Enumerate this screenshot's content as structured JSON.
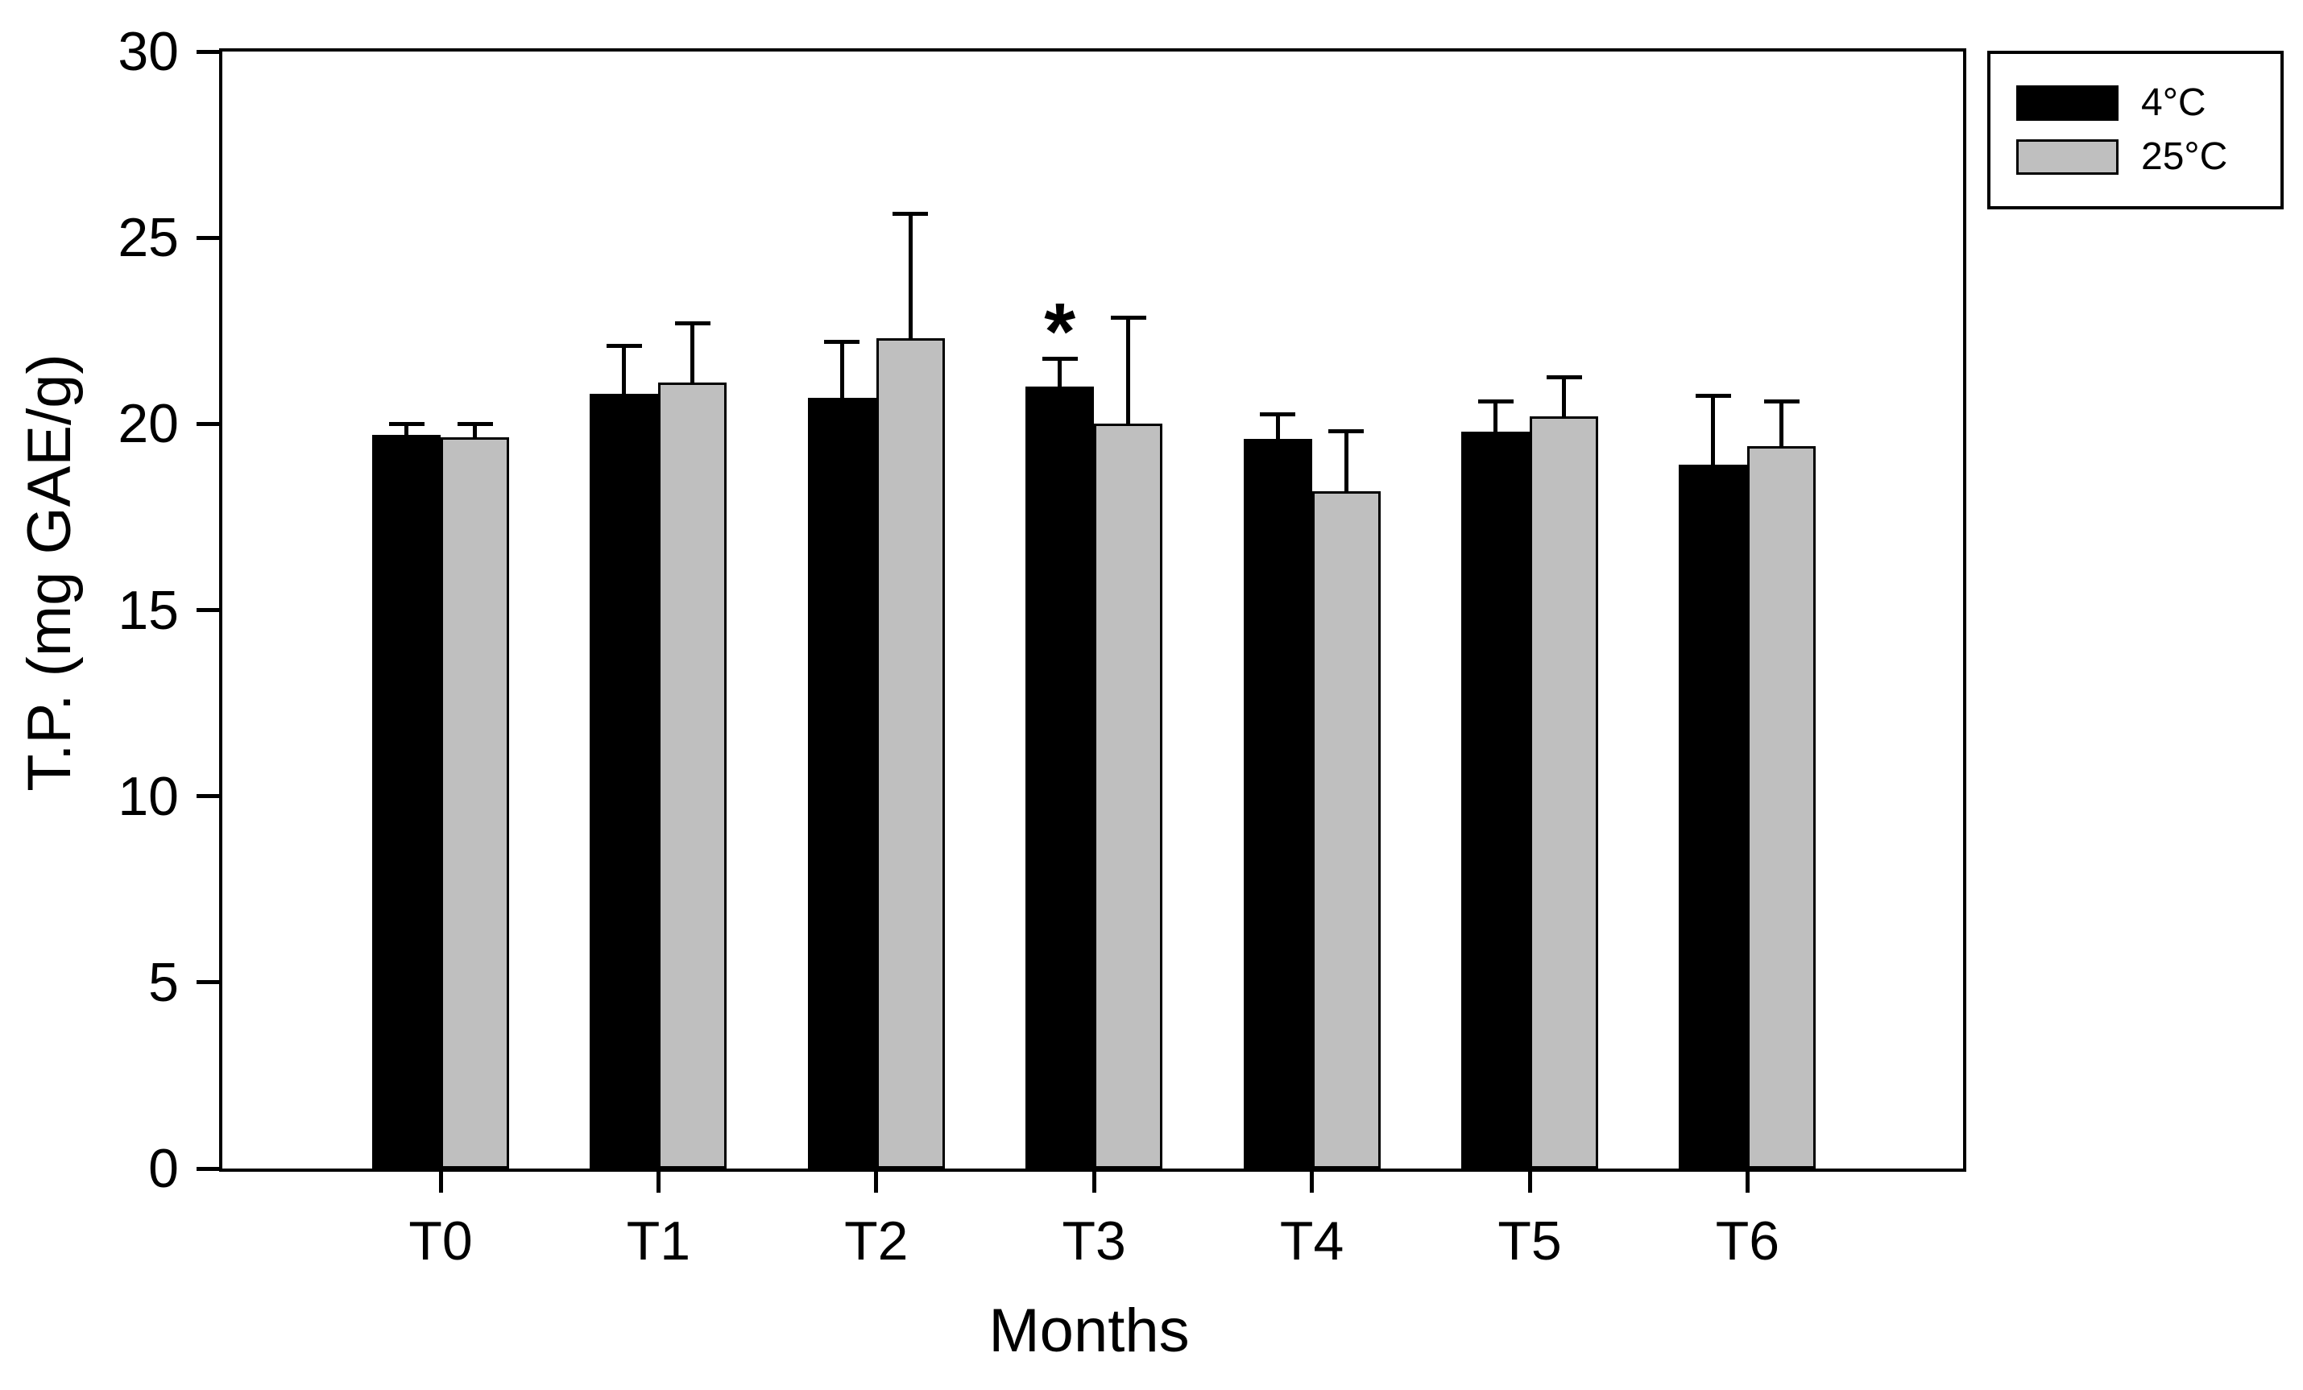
{
  "chart_data": {
    "type": "bar",
    "title": "",
    "xlabel": "Months",
    "ylabel": "T.P. (mg GAE/g)",
    "categories": [
      "T0",
      "T1",
      "T2",
      "T3",
      "T4",
      "T5",
      "T6"
    ],
    "series": [
      {
        "name": "4°C",
        "color": "#000000",
        "values": [
          19.7,
          20.8,
          20.7,
          21.0,
          19.6,
          19.8,
          18.9
        ],
        "errors_up": [
          0.3,
          1.3,
          1.5,
          0.75,
          0.65,
          0.8,
          1.85
        ]
      },
      {
        "name": "25°C",
        "color": "#bfbfbf",
        "values": [
          19.65,
          21.1,
          22.3,
          20.0,
          18.2,
          20.2,
          19.4
        ],
        "errors_up": [
          0.35,
          1.6,
          3.35,
          2.85,
          1.6,
          1.05,
          1.2
        ]
      }
    ],
    "annotations": [
      {
        "text": "*",
        "category": "T3",
        "series": "4°C"
      }
    ],
    "ylim": [
      0,
      30
    ],
    "yticks": [
      0,
      5,
      10,
      15,
      20,
      25,
      30
    ],
    "grid": false,
    "error_bars": "upper-only",
    "legend_position": "outside-top-right",
    "axis_color": "#000000",
    "background_color": "#ffffff"
  }
}
